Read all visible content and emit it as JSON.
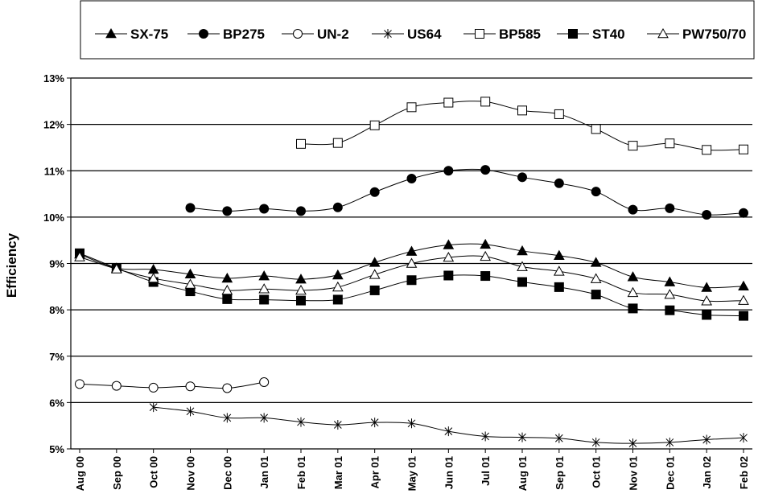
{
  "chart_data": {
    "type": "line",
    "title": "",
    "xlabel": "",
    "ylabel": "Efficiency",
    "ylim": [
      5,
      13
    ],
    "y_tick_labels": [
      "5%",
      "6%",
      "7%",
      "8%",
      "9%",
      "10%",
      "11%",
      "12%",
      "13%"
    ],
    "grid": "horizontal",
    "legend_position": "top",
    "categories": [
      "Aug 00",
      "Sep 00",
      "Oct 00",
      "Nov 00",
      "Dec 00",
      "Jan 01",
      "Feb 01",
      "Mar 01",
      "Apr 01",
      "May 01",
      "Jun 01",
      "Jul 01",
      "Aug 01",
      "Sep 01",
      "Oct 01",
      "Nov 01",
      "Dec 01",
      "Jan 02",
      "Feb 02"
    ],
    "series": [
      {
        "name": "SX-75",
        "marker": "triangle-filled",
        "values": [
          9.2,
          8.9,
          8.87,
          8.77,
          8.68,
          8.73,
          8.66,
          8.75,
          9.02,
          9.26,
          9.4,
          9.41,
          9.27,
          9.17,
          9.02,
          8.71,
          8.6,
          8.48,
          8.51
        ]
      },
      {
        "name": "BP275",
        "marker": "circle-filled",
        "values": [
          null,
          null,
          null,
          10.2,
          10.13,
          10.18,
          10.13,
          10.21,
          10.54,
          10.83,
          11.0,
          11.02,
          10.86,
          10.73,
          10.55,
          10.16,
          10.19,
          10.05,
          10.09
        ]
      },
      {
        "name": "UN-2",
        "marker": "circle-open",
        "values": [
          6.4,
          6.36,
          6.32,
          6.35,
          6.31,
          6.44,
          null,
          null,
          null,
          null,
          null,
          null,
          null,
          null,
          null,
          null,
          null,
          null,
          null
        ]
      },
      {
        "name": "US64",
        "marker": "asterisk",
        "values": [
          null,
          null,
          5.9,
          5.81,
          5.67,
          5.67,
          5.58,
          5.52,
          5.57,
          5.55,
          5.38,
          5.27,
          5.25,
          5.23,
          5.14,
          5.12,
          5.14,
          5.2,
          5.24
        ]
      },
      {
        "name": "BP585",
        "marker": "square-open",
        "values": [
          null,
          null,
          null,
          null,
          null,
          null,
          11.58,
          11.6,
          11.98,
          12.37,
          12.47,
          12.49,
          12.3,
          12.22,
          11.9,
          11.54,
          11.59,
          11.45,
          11.46
        ]
      },
      {
        "name": "ST40",
        "marker": "square-filled",
        "values": [
          9.22,
          8.9,
          8.6,
          8.4,
          8.23,
          8.22,
          8.2,
          8.22,
          8.42,
          8.64,
          8.74,
          8.73,
          8.6,
          8.49,
          8.33,
          8.03,
          7.99,
          7.89,
          7.87
        ]
      },
      {
        "name": "PW750/70",
        "marker": "triangle-open",
        "values": [
          9.14,
          8.88,
          8.68,
          8.55,
          8.42,
          8.45,
          8.42,
          8.49,
          8.76,
          9.0,
          9.13,
          9.15,
          8.93,
          8.83,
          8.67,
          8.37,
          8.33,
          8.19,
          8.2
        ]
      }
    ]
  }
}
